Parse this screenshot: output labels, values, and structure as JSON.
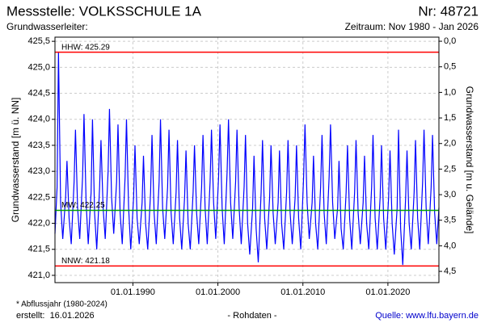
{
  "chart_data": {
    "type": "line",
    "title": "Messstelle: VOLKSSCHULE 1A",
    "number": "Nr: 48721",
    "subtitle": "Grundwasserleiter:",
    "period": "Zeitraum: Nov 1980 - Jan 2026",
    "y_label": "Grundwasserstand [m ü. NN]",
    "y2_label": "Grundwasserstand [m u. Gelände]",
    "footnote": "* Abflussjahr (1980-2024)",
    "created": "erstellt:  16.01.2026",
    "data_kind": "- Rohdaten -",
    "source": "Quelle: www.lfu.bayern.de",
    "xlim": [
      "1980-11-01",
      "2026-01-01"
    ],
    "xticks": [
      {
        "value": "1990-01-01",
        "label": "01.01.1990"
      },
      {
        "value": "2000-01-01",
        "label": "01.01.2000"
      },
      {
        "value": "2010-01-01",
        "label": "01.01.2010"
      },
      {
        "value": "2020-01-01",
        "label": "01.01.2020"
      }
    ],
    "ylim": [
      420.86,
      425.58
    ],
    "yticks": [
      {
        "value": 421.0,
        "label": "421,0"
      },
      {
        "value": 421.5,
        "label": "421,5"
      },
      {
        "value": 422.0,
        "label": "422,0"
      },
      {
        "value": 422.5,
        "label": "422,5"
      },
      {
        "value": 423.0,
        "label": "423,0"
      },
      {
        "value": 423.5,
        "label": "423,5"
      },
      {
        "value": 424.0,
        "label": "424,0"
      },
      {
        "value": 424.5,
        "label": "424,5"
      },
      {
        "value": 425.0,
        "label": "425,0"
      },
      {
        "value": 425.5,
        "label": "425,5"
      }
    ],
    "y2lim": [
      -0.08,
      4.72
    ],
    "y2_inverted": true,
    "y2ticks": [
      {
        "value": 0,
        "label": "0,0"
      },
      {
        "value": 0.5,
        "label": "0,5"
      },
      {
        "value": 1,
        "label": "1,0"
      },
      {
        "value": 1.5,
        "label": "1,5"
      },
      {
        "value": 2,
        "label": "2,0"
      },
      {
        "value": 2.5,
        "label": "2,5"
      },
      {
        "value": 3,
        "label": "3,0"
      },
      {
        "value": 3.5,
        "label": "3,5"
      },
      {
        "value": 4,
        "label": "4,0"
      },
      {
        "value": 4.5,
        "label": "4,5"
      }
    ],
    "grid": true,
    "reference_lines": [
      {
        "label": "HHW: 425.29",
        "value": 425.29,
        "color": "#ff0000"
      },
      {
        "label": "MW: 422.25",
        "value": 422.25,
        "color": "#00a000"
      },
      {
        "label": "NNW: 421.18",
        "value": 421.18,
        "color": "#ff0000"
      }
    ],
    "x": [
      "1980-11-01",
      "1981-02-01",
      "1981-04-01",
      "1981-07-01",
      "1981-10-01",
      "1982-02-01",
      "1982-04-01",
      "1982-07-01",
      "1982-10-01",
      "1983-02-01",
      "1983-04-01",
      "1983-07-01",
      "1983-10-01",
      "1984-02-01",
      "1984-04-01",
      "1984-07-01",
      "1984-10-01",
      "1985-02-01",
      "1985-04-01",
      "1985-07-01",
      "1985-10-01",
      "1986-02-01",
      "1986-04-01",
      "1986-07-01",
      "1986-10-01",
      "1987-02-01",
      "1987-04-01",
      "1987-07-01",
      "1987-10-01",
      "1988-02-01",
      "1988-04-01",
      "1988-07-01",
      "1988-10-01",
      "1989-02-01",
      "1989-04-01",
      "1989-07-01",
      "1989-10-01",
      "1990-02-01",
      "1990-04-01",
      "1990-07-01",
      "1990-10-01",
      "1991-02-01",
      "1991-04-01",
      "1991-07-01",
      "1991-10-01",
      "1992-02-01",
      "1992-04-01",
      "1992-07-01",
      "1992-10-01",
      "1993-02-01",
      "1993-04-01",
      "1993-07-01",
      "1993-10-01",
      "1994-02-01",
      "1994-04-01",
      "1994-07-01",
      "1994-10-01",
      "1995-02-01",
      "1995-04-01",
      "1995-07-01",
      "1995-10-01",
      "1996-02-01",
      "1996-04-01",
      "1996-07-01",
      "1996-10-01",
      "1997-02-01",
      "1997-04-01",
      "1997-07-01",
      "1997-10-01",
      "1998-02-01",
      "1998-04-01",
      "1998-07-01",
      "1998-10-01",
      "1999-02-01",
      "1999-04-01",
      "1999-07-01",
      "1999-10-01",
      "2000-02-01",
      "2000-04-01",
      "2000-07-01",
      "2000-10-01",
      "2001-02-01",
      "2001-04-01",
      "2001-07-01",
      "2001-10-01",
      "2002-02-01",
      "2002-04-01",
      "2002-07-01",
      "2002-10-01",
      "2003-02-01",
      "2003-04-01",
      "2003-07-01",
      "2003-10-01",
      "2004-02-01",
      "2004-04-01",
      "2004-07-01",
      "2004-10-01",
      "2005-02-01",
      "2005-04-01",
      "2005-07-01",
      "2005-10-01",
      "2006-02-01",
      "2006-04-01",
      "2006-07-01",
      "2006-10-01",
      "2007-02-01",
      "2007-04-01",
      "2007-07-01",
      "2007-10-01",
      "2008-02-01",
      "2008-04-01",
      "2008-07-01",
      "2008-10-01",
      "2009-02-01",
      "2009-04-01",
      "2009-07-01",
      "2009-10-01",
      "2010-02-01",
      "2010-04-01",
      "2010-07-01",
      "2010-10-01",
      "2011-02-01",
      "2011-04-01",
      "2011-07-01",
      "2011-10-01",
      "2012-02-01",
      "2012-04-01",
      "2012-07-01",
      "2012-10-01",
      "2013-02-01",
      "2013-04-01",
      "2013-07-01",
      "2013-10-01",
      "2014-02-01",
      "2014-04-01",
      "2014-07-01",
      "2014-10-01",
      "2015-02-01",
      "2015-04-01",
      "2015-07-01",
      "2015-10-01",
      "2016-02-01",
      "2016-04-01",
      "2016-07-01",
      "2016-10-01",
      "2017-02-01",
      "2017-04-01",
      "2017-07-01",
      "2017-10-01",
      "2018-02-01",
      "2018-04-01",
      "2018-07-01",
      "2018-10-01",
      "2019-02-01",
      "2019-04-01",
      "2019-07-01",
      "2019-10-01",
      "2020-02-01",
      "2020-04-01",
      "2020-07-01",
      "2020-10-01",
      "2021-02-01",
      "2021-04-01",
      "2021-07-01",
      "2021-10-01",
      "2022-02-01",
      "2022-04-01",
      "2022-07-01",
      "2022-10-01",
      "2023-02-01",
      "2023-04-01",
      "2023-07-01",
      "2023-10-01",
      "2024-02-01",
      "2024-04-01",
      "2024-07-01",
      "2024-10-01",
      "2025-02-01",
      "2025-04-01",
      "2025-07-01",
      "2025-10-01",
      "2026-01-01"
    ],
    "series": [
      {
        "name": "Grundwasserstand",
        "color": "#0000ff",
        "values": [
          421.8,
          422.7,
          425.29,
          422.4,
          421.7,
          422.5,
          423.2,
          422.1,
          421.6,
          422.8,
          423.8,
          422.3,
          421.7,
          422.9,
          424.1,
          422.4,
          421.6,
          422.6,
          424.0,
          422.2,
          421.5,
          422.7,
          423.6,
          422.3,
          421.7,
          423.0,
          424.2,
          422.5,
          421.8,
          422.8,
          423.9,
          422.2,
          421.6,
          422.9,
          424.0,
          422.3,
          421.5,
          422.5,
          423.5,
          422.1,
          421.6,
          422.4,
          423.3,
          422.0,
          421.5,
          422.6,
          423.7,
          422.2,
          421.6,
          422.8,
          424.0,
          422.3,
          421.7,
          422.7,
          423.8,
          422.2,
          421.6,
          422.6,
          423.6,
          422.1,
          421.5,
          422.5,
          423.4,
          422.0,
          421.5,
          422.6,
          423.5,
          422.2,
          421.6,
          422.7,
          423.7,
          422.3,
          421.6,
          422.8,
          423.8,
          422.4,
          421.7,
          422.9,
          423.9,
          422.3,
          421.6,
          423.0,
          424.0,
          422.4,
          421.7,
          422.8,
          423.8,
          422.3,
          421.6,
          422.7,
          423.7,
          422.0,
          421.4,
          422.3,
          423.3,
          421.9,
          421.25,
          422.6,
          423.6,
          422.1,
          421.5,
          422.5,
          423.5,
          422.2,
          421.6,
          422.4,
          423.4,
          422.0,
          421.5,
          422.6,
          423.6,
          422.2,
          421.6,
          422.5,
          423.5,
          422.1,
          421.5,
          422.9,
          423.9,
          422.4,
          421.7,
          422.4,
          423.3,
          422.0,
          421.5,
          422.7,
          423.7,
          422.2,
          421.6,
          422.9,
          423.9,
          422.4,
          421.7,
          422.3,
          423.2,
          421.9,
          421.5,
          422.6,
          423.5,
          422.1,
          421.5,
          422.6,
          423.6,
          422.2,
          421.6,
          422.4,
          423.3,
          422.0,
          421.5,
          422.7,
          423.7,
          422.1,
          421.5,
          422.5,
          423.5,
          422.1,
          421.5,
          422.5,
          423.4,
          422.0,
          421.4,
          422.3,
          423.8,
          421.9,
          421.2,
          422.5,
          423.4,
          422.0,
          421.5,
          422.6,
          423.6,
          422.1,
          421.5,
          422.8,
          423.8,
          422.3,
          421.6,
          422.7,
          423.7,
          422.2,
          421.6,
          422.3
        ]
      }
    ]
  }
}
